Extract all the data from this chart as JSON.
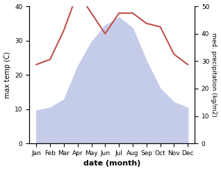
{
  "months": [
    "Jan",
    "Feb",
    "Mar",
    "Apr",
    "May",
    "Jun",
    "Jul",
    "Aug",
    "Sep",
    "Oct",
    "Nov",
    "Dec"
  ],
  "x": [
    0,
    1,
    2,
    3,
    4,
    5,
    6,
    7,
    8,
    9,
    10,
    11
  ],
  "temperature": [
    23,
    24.5,
    33,
    44,
    38,
    32,
    38,
    38,
    35,
    34,
    26,
    23
  ],
  "precipitation": [
    12,
    13,
    16,
    28,
    37,
    43,
    46,
    42,
    30,
    20,
    15,
    13
  ],
  "temp_color": "#c0504d",
  "precip_fill_color": "#c5cce8",
  "precip_line_color": "#9090c0",
  "temp_ylim": [
    0,
    40
  ],
  "precip_ylim": [
    0,
    50
  ],
  "ylabel_left": "max temp (C)",
  "ylabel_right": "med. precipitation (kg/m2)",
  "xlabel": "date (month)",
  "left_yticks": [
    0,
    10,
    20,
    30,
    40
  ],
  "right_yticks": [
    0,
    10,
    20,
    30,
    40,
    50
  ]
}
